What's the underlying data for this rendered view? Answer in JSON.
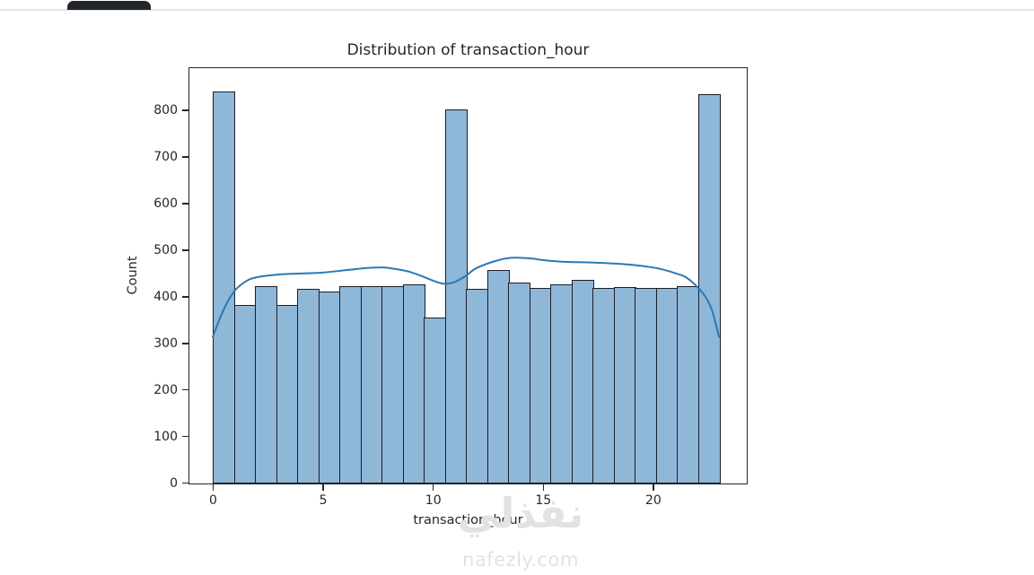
{
  "window": {
    "tab_color": "#21252c",
    "divider_color": "#e4e4e4"
  },
  "chart": {
    "title": "Distribution of transaction_hour",
    "xlabel": "transaction_hour",
    "ylabel": "Count",
    "colors": {
      "bar_fill": "#8fb7d8",
      "bar_edge": "#1a1e28",
      "kde_line": "#2979b5",
      "text": "#262626",
      "spine": "#262626"
    }
  },
  "chart_data": {
    "type": "bar",
    "subtype": "histogram-with-kde",
    "title": "Distribution of transaction_hour",
    "xlabel": "transaction_hour",
    "ylabel": "Count",
    "categories": [
      0,
      1,
      2,
      3,
      4,
      5,
      6,
      7,
      8,
      9,
      10,
      11,
      12,
      13,
      14,
      15,
      16,
      17,
      18,
      19,
      20,
      21,
      22,
      23
    ],
    "values": [
      842,
      383,
      424,
      383,
      418,
      412,
      424,
      424,
      424,
      427,
      357,
      803,
      419,
      458,
      431,
      420,
      427,
      438,
      420,
      421,
      420,
      420,
      424,
      836
    ],
    "kde_points": [
      [
        0,
        313
      ],
      [
        0.5,
        372
      ],
      [
        1,
        412
      ],
      [
        1.5,
        432
      ],
      [
        2,
        441
      ],
      [
        3,
        447
      ],
      [
        4,
        449
      ],
      [
        5,
        451
      ],
      [
        6,
        456
      ],
      [
        7,
        461
      ],
      [
        7.5,
        462
      ],
      [
        8,
        461
      ],
      [
        9,
        452
      ],
      [
        10,
        434
      ],
      [
        10.5,
        427
      ],
      [
        11,
        431
      ],
      [
        11.5,
        444
      ],
      [
        12,
        461
      ],
      [
        13,
        478
      ],
      [
        13.7,
        483
      ],
      [
        14.5,
        481
      ],
      [
        15,
        478
      ],
      [
        16,
        474
      ],
      [
        17,
        473
      ],
      [
        18,
        471
      ],
      [
        19,
        468
      ],
      [
        20,
        462
      ],
      [
        20.5,
        457
      ],
      [
        21,
        450
      ],
      [
        21.5,
        441
      ],
      [
        22,
        421
      ],
      [
        22.4,
        398
      ],
      [
        22.7,
        368
      ],
      [
        23,
        313
      ]
    ],
    "xticks": [
      0,
      5,
      10,
      15,
      20
    ],
    "yticks": [
      0,
      100,
      200,
      300,
      400,
      500,
      600,
      700,
      800
    ],
    "ylim": [
      0,
      890
    ],
    "xlim": [
      -1.1,
      24.3
    ],
    "grid": false,
    "legend": "none"
  },
  "watermark": {
    "logo_text": "نفذلي",
    "site": "nafezly.com"
  }
}
